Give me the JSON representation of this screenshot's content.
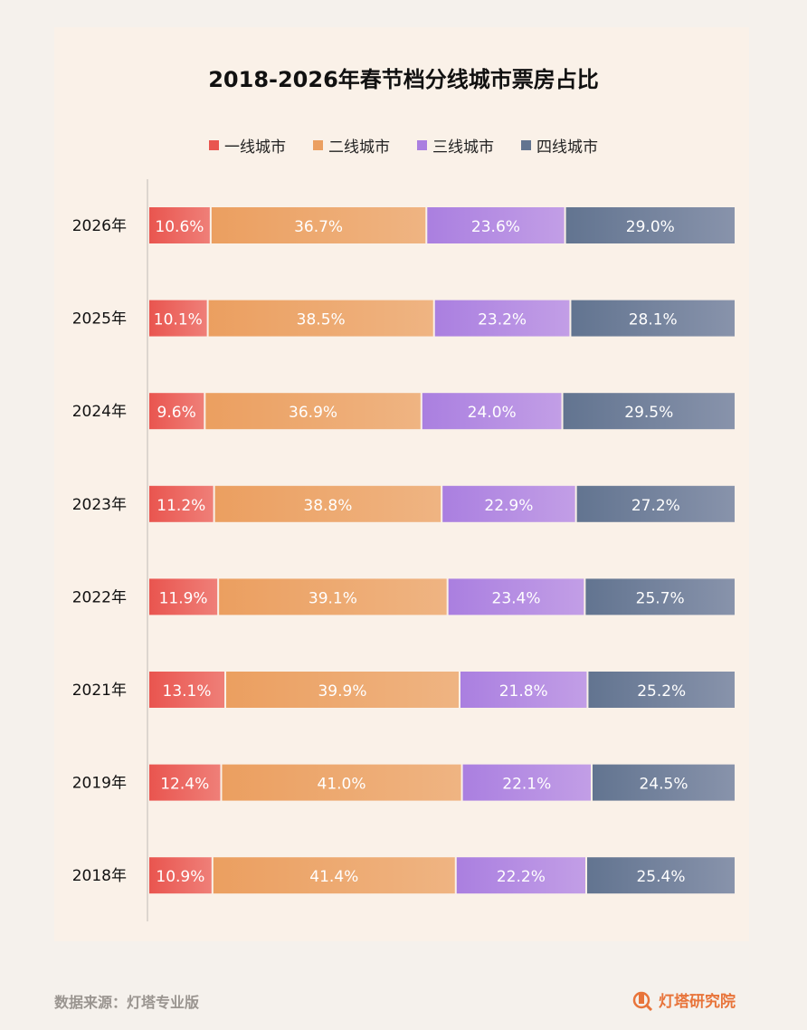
{
  "chart_data": {
    "type": "bar",
    "orientation": "horizontal",
    "stacked": true,
    "title": "2018-2026年春节档分线城市票房占比",
    "categories": [
      "2026年",
      "2025年",
      "2024年",
      "2023年",
      "2022年",
      "2021年",
      "2019年",
      "2018年"
    ],
    "series": [
      {
        "name": "一线城市",
        "color": "#e9554f",
        "color_end": "#ef7f78",
        "values": [
          10.6,
          10.1,
          9.6,
          11.2,
          11.9,
          13.1,
          12.4,
          10.9
        ],
        "labels": [
          "10.6%",
          "10.1%",
          "9.6%",
          "11.2%",
          "11.9%",
          "13.1%",
          "12.4%",
          "10.9%"
        ]
      },
      {
        "name": "二线城市",
        "color": "#eb9f60",
        "color_end": "#efb482",
        "values": [
          36.7,
          38.5,
          36.9,
          38.8,
          39.1,
          39.9,
          41.0,
          41.4
        ],
        "labels": [
          "36.7%",
          "38.5%",
          "36.9%",
          "38.8%",
          "39.1%",
          "39.9%",
          "41.0%",
          "41.4%"
        ]
      },
      {
        "name": "三线城市",
        "color": "#aa7fe0",
        "color_end": "#c29ee6",
        "values": [
          23.6,
          23.2,
          24.0,
          22.9,
          23.4,
          21.8,
          22.1,
          22.2
        ],
        "labels": [
          "23.6%",
          "23.2%",
          "24.0%",
          "22.9%",
          "23.4%",
          "21.8%",
          "22.1%",
          "22.2%"
        ]
      },
      {
        "name": "四线城市",
        "color": "#627490",
        "color_end": "#8893ab",
        "values": [
          29.0,
          28.1,
          29.5,
          27.2,
          25.7,
          25.2,
          24.5,
          25.4
        ],
        "labels": [
          "29.0%",
          "28.1%",
          "29.5%",
          "27.2%",
          "25.7%",
          "25.2%",
          "24.5%",
          "25.4%"
        ]
      }
    ],
    "legend_position": "top",
    "grid": false
  },
  "footer": {
    "source": "数据来源：灯塔专业版",
    "brand": "灯塔研究院",
    "brand_icon": "lighthouse-magnifier-icon"
  }
}
